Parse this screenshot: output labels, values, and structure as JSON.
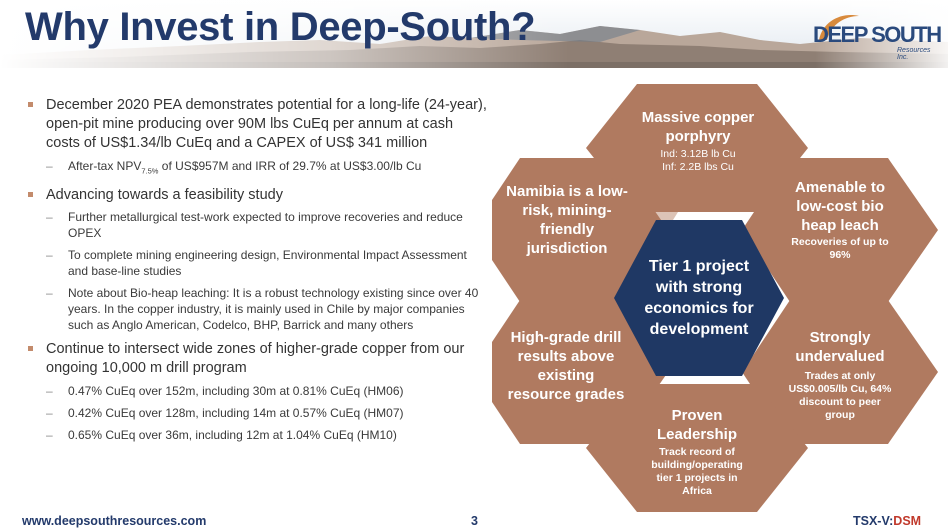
{
  "header": {
    "title": "Why Invest in Deep-South?",
    "logo_text": "DEEP SOUTH",
    "logo_subtext": "Resources Inc."
  },
  "bullets": [
    {
      "text": "December 2020 PEA demonstrates potential for a long-life (24-year), open-pit mine producing over 90M lbs CuEq per annum at cash costs of US$1.34/lb CuEq and a CAPEX of US$ 341 million",
      "subs": [
        {
          "pre": "After-tax NPV",
          "subscript": "7.5%",
          "post": " of US$957M and IRR of 29.7% at US$3.00/lb Cu"
        }
      ]
    },
    {
      "text": "Advancing towards a feasibility study",
      "subs": [
        {
          "pre": "Further metallurgical test-work expected to improve recoveries and reduce OPEX"
        },
        {
          "pre": "To complete mining engineering design, Environmental Impact Assessment and base-line studies"
        },
        {
          "pre": "Note about Bio-heap leaching: It is a robust technology existing since over 40 years. In the copper industry, it is mainly used in Chile by major companies such as Anglo American, Codelco, BHP, Barrick and many others"
        }
      ]
    },
    {
      "text": "Continue to intersect wide zones of higher-grade copper from our ongoing 10,000 m drill program",
      "subs": [
        {
          "pre": "0.47% CuEq over 152m, including 30m at 0.81% CuEq (HM06)"
        },
        {
          "pre": "0.42% CuEq over 128m, including 14m at 0.57% CuEq (HM07)"
        },
        {
          "pre": "0.65% CuEq over 36m, including 12m at 1.04% CuEq (HM10)"
        }
      ]
    }
  ],
  "graphic": {
    "center": "Tier 1 project with strong economics for development",
    "hexes": {
      "top": {
        "title": "Massive copper porphyry",
        "lines": [
          "Ind: 3.12B lb Cu",
          "Inf: 2.2B lbs Cu"
        ]
      },
      "upper_right": {
        "title": "Amenable to low-cost bio heap leach",
        "lines": [
          "Recoveries of up to 96%"
        ]
      },
      "lower_right": {
        "title": "Strongly undervalued",
        "lines": [
          "Trades at only US$0.005/lb Cu, 64% discount to peer group"
        ]
      },
      "bottom": {
        "title": "Proven Leadership",
        "lines": [
          "Track record of building/operating tier 1 projects in Africa"
        ]
      },
      "lower_left": {
        "title": "High-grade drill results above existing resource grades",
        "lines": []
      },
      "upper_left": {
        "title": "Namibia is a low-risk, mining-friendly jurisdiction",
        "lines": []
      }
    },
    "colors": {
      "hex": "#b07a60",
      "connector": "#dcc3b6",
      "center": "#1f3864"
    }
  },
  "footer": {
    "url": "www.deepsouthresources.com",
    "page_number": "3",
    "ticker_prefix": "TSX-V:",
    "ticker_symbol": "DSM"
  },
  "colors": {
    "title": "#233a6b",
    "bullet": "#c38b6c",
    "ticker_accent": "#c0392b"
  }
}
